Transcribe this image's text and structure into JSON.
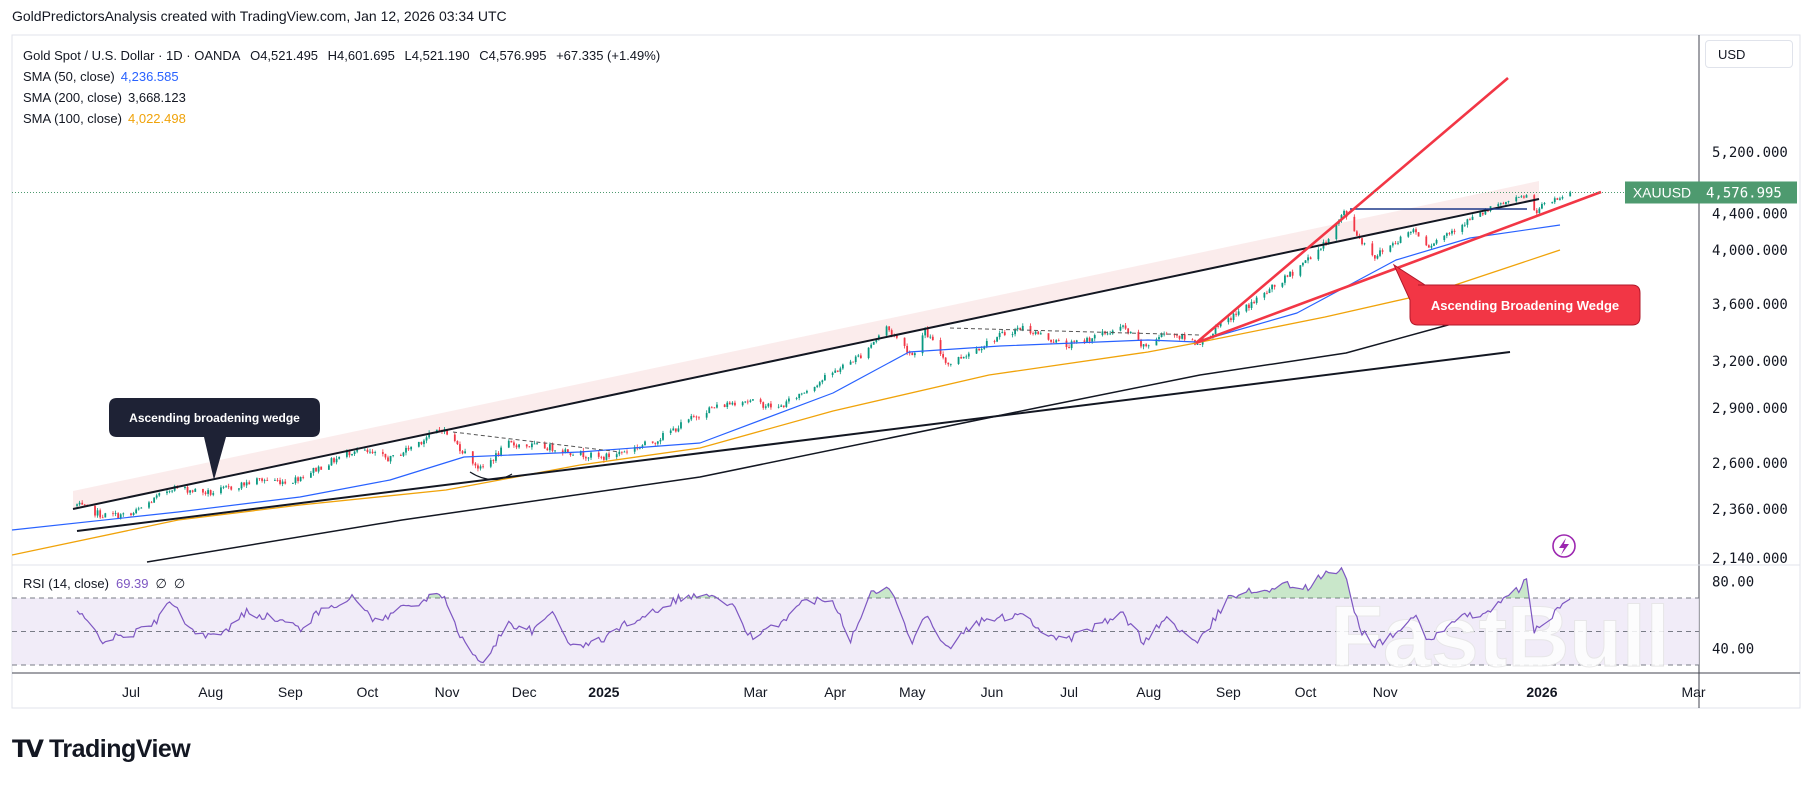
{
  "header": {
    "attribution": "GoldPredictorsAnalysis created with TradingView.com, Jan 12, 2026 03:34 UTC"
  },
  "legend": {
    "symbol": "Gold Spot / U.S. Dollar · 1D · OANDA",
    "open": "O4,521.495",
    "high": "H4,601.695",
    "low": "L4,521.190",
    "close": "C4,576.995",
    "change": "+67.335 (+1.49%)",
    "sma50": {
      "label": "SMA (50, close)",
      "value": "4,236.585",
      "color": "#2962ff"
    },
    "sma200": {
      "label": "SMA (200, close)",
      "value": "3,668.123",
      "color": "#131722"
    },
    "sma100": {
      "label": "SMA (100, close)",
      "value": "4,022.498",
      "color": "#f0a30a"
    }
  },
  "price_axis": {
    "currency": "USD",
    "ticks": [
      {
        "label": "5,200.000",
        "value": 5200
      },
      {
        "label": "4,400.000",
        "value": 4400
      },
      {
        "label": "4,000.000",
        "value": 4000
      },
      {
        "label": "3,600.000",
        "value": 3600
      },
      {
        "label": "3,200.000",
        "value": 3200
      },
      {
        "label": "2,900.000",
        "value": 2900
      },
      {
        "label": "2,600.000",
        "value": 2600
      },
      {
        "label": "2,360.000",
        "value": 2360
      },
      {
        "label": "2,140.000",
        "value": 2140
      }
    ]
  },
  "current_price": {
    "symbol": "XAUUSD",
    "price": "4,576.995",
    "color": "#4e9a6f"
  },
  "rsi": {
    "label": "RSI (14, close)",
    "value": "69.39",
    "extra1": "∅",
    "extra2": "∅",
    "ticks": [
      {
        "label": "80.00",
        "value": 80
      },
      {
        "label": "40.00",
        "value": 40
      }
    ],
    "levels": [
      70,
      50,
      30
    ],
    "color": "#7e57c2"
  },
  "time_axis": [
    {
      "label": "Jul",
      "date": "2024-07-01"
    },
    {
      "label": "Aug",
      "date": "2024-08-01"
    },
    {
      "label": "Sep",
      "date": "2024-09-01"
    },
    {
      "label": "Oct",
      "date": "2024-10-01"
    },
    {
      "label": "Nov",
      "date": "2024-11-01"
    },
    {
      "label": "Dec",
      "date": "2024-12-01"
    },
    {
      "label": "2025",
      "date": "2025-01-01"
    },
    {
      "label": "Mar",
      "date": "2025-03-01"
    },
    {
      "label": "Apr",
      "date": "2025-04-01"
    },
    {
      "label": "May",
      "date": "2025-05-01"
    },
    {
      "label": "Jun",
      "date": "2025-06-01"
    },
    {
      "label": "Jul",
      "date": "2025-07-01"
    },
    {
      "label": "Aug",
      "date": "2025-08-01"
    },
    {
      "label": "Sep",
      "date": "2025-09-01"
    },
    {
      "label": "Oct",
      "date": "2025-10-01"
    },
    {
      "label": "Nov",
      "date": "2025-11-01"
    },
    {
      "label": "2026",
      "date": "2026-01-01"
    },
    {
      "label": "Mar",
      "date": "2026-03-01"
    }
  ],
  "annotations": {
    "left_callout": "Ascending broadening wedge",
    "right_callout": "Ascending Broadening Wedge"
  },
  "colors": {
    "up": "#089981",
    "down": "#f23645",
    "wedge_red": "#f23645",
    "callout_dark": "#1e2235",
    "callout_red": "#f23645",
    "rsi_fill": "#ede7f6"
  },
  "watermark": "FastBull",
  "logo": {
    "mark": "17",
    "text": "TradingView"
  },
  "chart_data": {
    "type": "candlestick",
    "scale": "log",
    "ylim": [
      2140,
      5200
    ],
    "grid": false,
    "price_keypoints": [
      [
        "2024-06-10",
        2380
      ],
      [
        "2024-06-20",
        2330
      ],
      [
        "2024-07-01",
        2330
      ],
      [
        "2024-07-17",
        2470
      ],
      [
        "2024-08-01",
        2440
      ],
      [
        "2024-08-20",
        2510
      ],
      [
        "2024-09-01",
        2500
      ],
      [
        "2024-09-26",
        2670
      ],
      [
        "2024-10-10",
        2620
      ],
      [
        "2024-10-30",
        2785
      ],
      [
        "2024-11-14",
        2565
      ],
      [
        "2024-11-25",
        2700
      ],
      [
        "2024-12-12",
        2680
      ],
      [
        "2024-12-31",
        2625
      ],
      [
        "2025-01-20",
        2710
      ],
      [
        "2025-02-10",
        2890
      ],
      [
        "2025-02-24",
        2950
      ],
      [
        "2025-03-10",
        2900
      ],
      [
        "2025-03-31",
        3120
      ],
      [
        "2025-04-11",
        3240
      ],
      [
        "2025-04-21",
        3430
      ],
      [
        "2025-05-01",
        3240
      ],
      [
        "2025-05-06",
        3400
      ],
      [
        "2025-05-15",
        3180
      ],
      [
        "2025-06-05",
        3380
      ],
      [
        "2025-06-13",
        3430
      ],
      [
        "2025-06-30",
        3300
      ],
      [
        "2025-07-22",
        3430
      ],
      [
        "2025-07-30",
        3290
      ],
      [
        "2025-08-08",
        3400
      ],
      [
        "2025-08-20",
        3320
      ],
      [
        "2025-09-02",
        3500
      ],
      [
        "2025-09-23",
        3780
      ],
      [
        "2025-10-08",
        4040
      ],
      [
        "2025-10-16",
        4330
      ],
      [
        "2025-10-22",
        4100
      ],
      [
        "2025-10-28",
        3950
      ],
      [
        "2025-11-12",
        4180
      ],
      [
        "2025-11-18",
        4040
      ],
      [
        "2025-12-01",
        4230
      ],
      [
        "2025-12-26",
        4530
      ],
      [
        "2025-12-29",
        4340
      ],
      [
        "2026-01-05",
        4450
      ],
      [
        "2026-01-09",
        4510
      ]
    ],
    "last_bar": {
      "date": "2026-01-12",
      "open": 4521.495,
      "high": 4601.695,
      "low": 4521.19,
      "close": 4576.995
    },
    "rsi_keypoints": [
      [
        "2024-06-10",
        62
      ],
      [
        "2024-06-20",
        45
      ],
      [
        "2024-07-01",
        48
      ],
      [
        "2024-07-10",
        55
      ],
      [
        "2024-07-17",
        68
      ],
      [
        "2024-07-25",
        50
      ],
      [
        "2024-08-05",
        47
      ],
      [
        "2024-08-15",
        62
      ],
      [
        "2024-08-25",
        58
      ],
      [
        "2024-09-05",
        52
      ],
      [
        "2024-09-15",
        65
      ],
      [
        "2024-09-26",
        70
      ],
      [
        "2024-10-05",
        55
      ],
      [
        "2024-10-15",
        65
      ],
      [
        "2024-10-30",
        72
      ],
      [
        "2024-11-07",
        45
      ],
      [
        "2024-11-14",
        30
      ],
      [
        "2024-11-25",
        55
      ],
      [
        "2024-12-05",
        50
      ],
      [
        "2024-12-12",
        62
      ],
      [
        "2024-12-20",
        40
      ],
      [
        "2024-12-31",
        45
      ],
      [
        "2025-01-10",
        55
      ],
      [
        "2025-01-20",
        62
      ],
      [
        "2025-01-30",
        70
      ],
      [
        "2025-02-10",
        72
      ],
      [
        "2025-02-20",
        65
      ],
      [
        "2025-02-28",
        45
      ],
      [
        "2025-03-10",
        55
      ],
      [
        "2025-03-20",
        68
      ],
      [
        "2025-03-31",
        70
      ],
      [
        "2025-04-07",
        45
      ],
      [
        "2025-04-14",
        72
      ],
      [
        "2025-04-22",
        76
      ],
      [
        "2025-05-01",
        45
      ],
      [
        "2025-05-06",
        60
      ],
      [
        "2025-05-15",
        40
      ],
      [
        "2025-05-25",
        55
      ],
      [
        "2025-06-05",
        58
      ],
      [
        "2025-06-13",
        62
      ],
      [
        "2025-06-20",
        50
      ],
      [
        "2025-06-30",
        45
      ],
      [
        "2025-07-10",
        52
      ],
      [
        "2025-07-22",
        60
      ],
      [
        "2025-07-30",
        44
      ],
      [
        "2025-08-08",
        58
      ],
      [
        "2025-08-20",
        42
      ],
      [
        "2025-09-02",
        72
      ],
      [
        "2025-09-15",
        75
      ],
      [
        "2025-09-23",
        78
      ],
      [
        "2025-10-02",
        76
      ],
      [
        "2025-10-08",
        84
      ],
      [
        "2025-10-16",
        86
      ],
      [
        "2025-10-22",
        52
      ],
      [
        "2025-10-28",
        42
      ],
      [
        "2025-11-05",
        48
      ],
      [
        "2025-11-12",
        60
      ],
      [
        "2025-11-18",
        45
      ],
      [
        "2025-12-01",
        58
      ],
      [
        "2025-12-10",
        62
      ],
      [
        "2025-12-19",
        70
      ],
      [
        "2025-12-26",
        80
      ],
      [
        "2025-12-29",
        50
      ],
      [
        "2026-01-02",
        55
      ],
      [
        "2026-01-06",
        62
      ],
      [
        "2026-01-12",
        69.39
      ]
    ]
  }
}
